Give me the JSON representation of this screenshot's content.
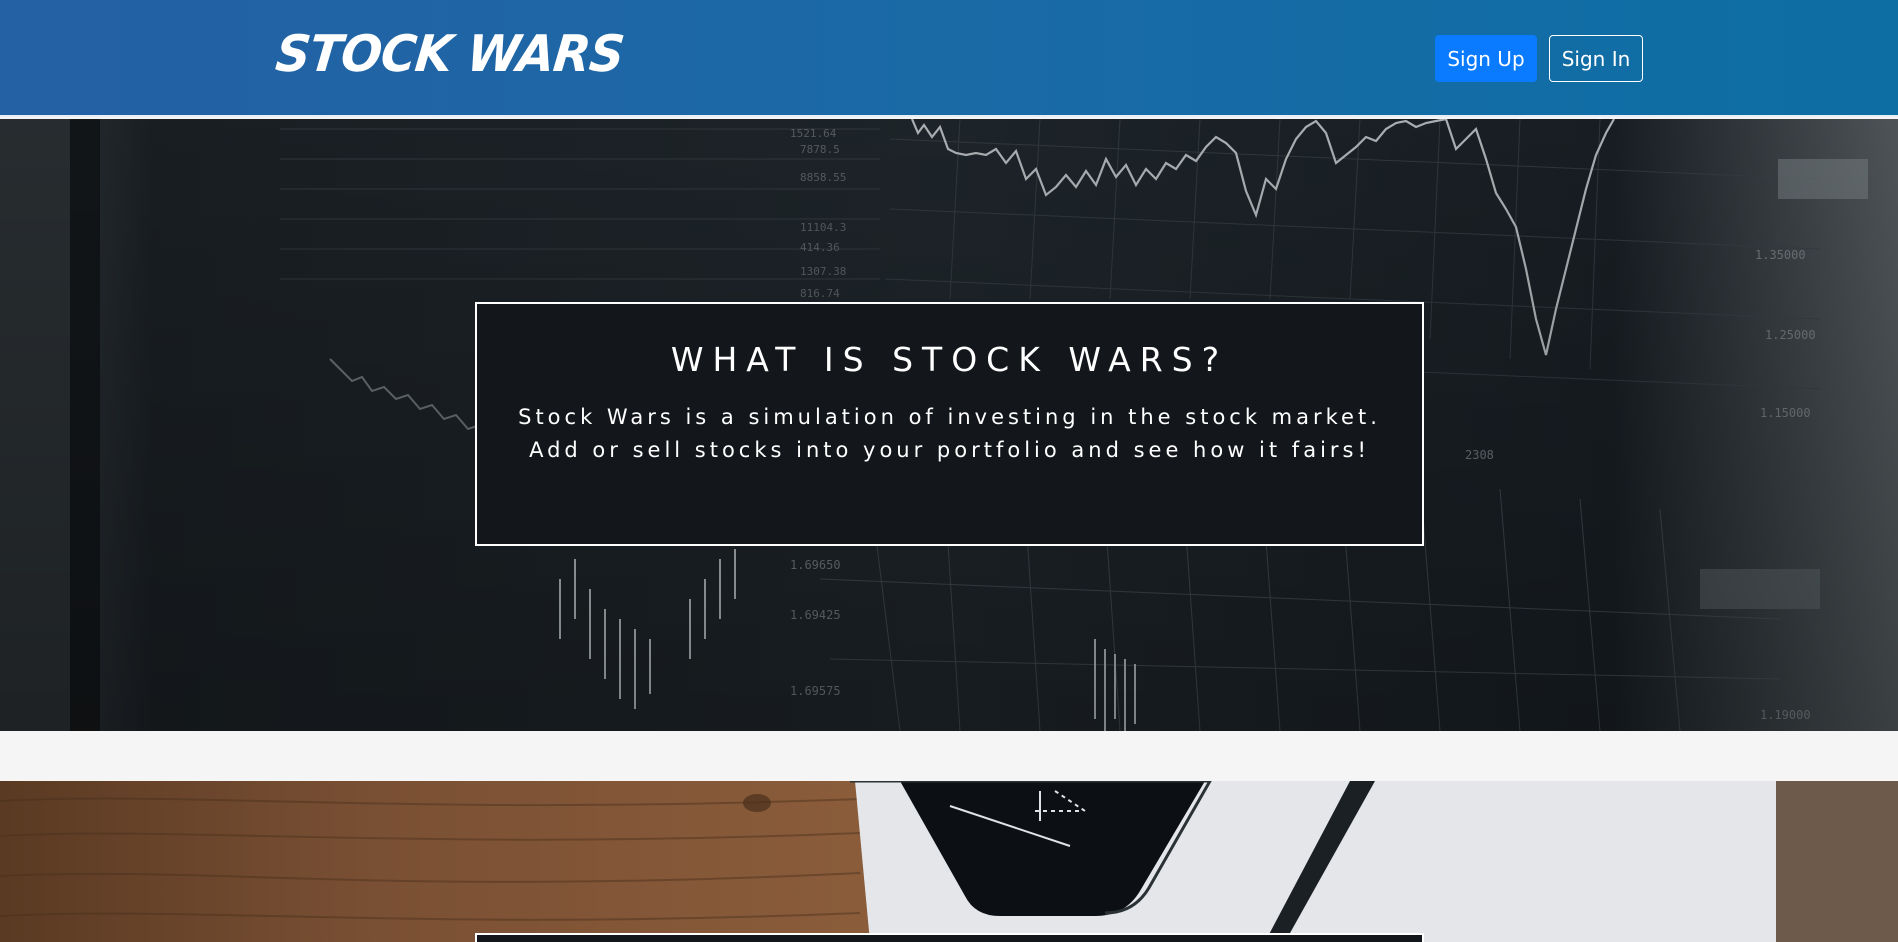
{
  "header": {
    "logo": "STOCK WARS",
    "signup_label": "Sign Up",
    "signin_label": "Sign In"
  },
  "hero": {
    "title": "WHAT IS STOCK WARS?",
    "description": "Stock Wars is a simulation of investing in the stock market. Add or sell stocks into your portfolio and see how it fairs!"
  },
  "colors": {
    "navbar": "#1a6aa6",
    "signup_button": "#0a7bff",
    "info_box": "#13171c"
  }
}
